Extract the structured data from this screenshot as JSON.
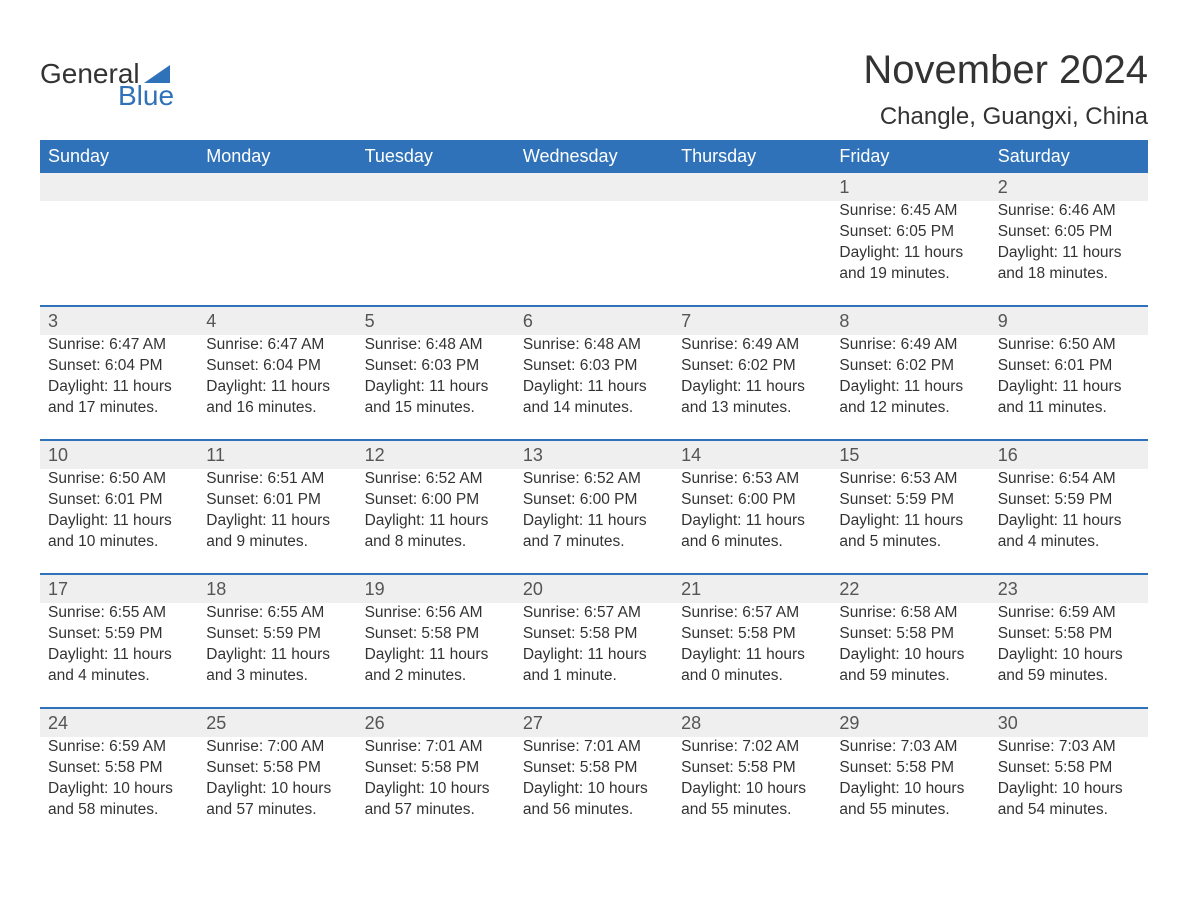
{
  "logo": {
    "word1": "General",
    "word2": "Blue"
  },
  "title": "November 2024",
  "location": "Changle, Guangxi, China",
  "header_bg": "#2f72b9",
  "header_text": "#ffffff",
  "accent_color": "#2f72b9",
  "daynum_bg": "#efefef",
  "text_color": "#333333",
  "font_family": "Arial, Helvetica, sans-serif",
  "weekdays": [
    "Sunday",
    "Monday",
    "Tuesday",
    "Wednesday",
    "Thursday",
    "Friday",
    "Saturday"
  ],
  "weeks": [
    {
      "sep": false,
      "cells": [
        null,
        null,
        null,
        null,
        null,
        {
          "n": "1",
          "sr": "Sunrise: 6:45 AM",
          "ss": "Sunset: 6:05 PM",
          "d1": "Daylight: 11 hours",
          "d2": "and 19 minutes."
        },
        {
          "n": "2",
          "sr": "Sunrise: 6:46 AM",
          "ss": "Sunset: 6:05 PM",
          "d1": "Daylight: 11 hours",
          "d2": "and 18 minutes."
        }
      ]
    },
    {
      "sep": true,
      "cells": [
        {
          "n": "3",
          "sr": "Sunrise: 6:47 AM",
          "ss": "Sunset: 6:04 PM",
          "d1": "Daylight: 11 hours",
          "d2": "and 17 minutes."
        },
        {
          "n": "4",
          "sr": "Sunrise: 6:47 AM",
          "ss": "Sunset: 6:04 PM",
          "d1": "Daylight: 11 hours",
          "d2": "and 16 minutes."
        },
        {
          "n": "5",
          "sr": "Sunrise: 6:48 AM",
          "ss": "Sunset: 6:03 PM",
          "d1": "Daylight: 11 hours",
          "d2": "and 15 minutes."
        },
        {
          "n": "6",
          "sr": "Sunrise: 6:48 AM",
          "ss": "Sunset: 6:03 PM",
          "d1": "Daylight: 11 hours",
          "d2": "and 14 minutes."
        },
        {
          "n": "7",
          "sr": "Sunrise: 6:49 AM",
          "ss": "Sunset: 6:02 PM",
          "d1": "Daylight: 11 hours",
          "d2": "and 13 minutes."
        },
        {
          "n": "8",
          "sr": "Sunrise: 6:49 AM",
          "ss": "Sunset: 6:02 PM",
          "d1": "Daylight: 11 hours",
          "d2": "and 12 minutes."
        },
        {
          "n": "9",
          "sr": "Sunrise: 6:50 AM",
          "ss": "Sunset: 6:01 PM",
          "d1": "Daylight: 11 hours",
          "d2": "and 11 minutes."
        }
      ]
    },
    {
      "sep": true,
      "cells": [
        {
          "n": "10",
          "sr": "Sunrise: 6:50 AM",
          "ss": "Sunset: 6:01 PM",
          "d1": "Daylight: 11 hours",
          "d2": "and 10 minutes."
        },
        {
          "n": "11",
          "sr": "Sunrise: 6:51 AM",
          "ss": "Sunset: 6:01 PM",
          "d1": "Daylight: 11 hours",
          "d2": "and 9 minutes."
        },
        {
          "n": "12",
          "sr": "Sunrise: 6:52 AM",
          "ss": "Sunset: 6:00 PM",
          "d1": "Daylight: 11 hours",
          "d2": "and 8 minutes."
        },
        {
          "n": "13",
          "sr": "Sunrise: 6:52 AM",
          "ss": "Sunset: 6:00 PM",
          "d1": "Daylight: 11 hours",
          "d2": "and 7 minutes."
        },
        {
          "n": "14",
          "sr": "Sunrise: 6:53 AM",
          "ss": "Sunset: 6:00 PM",
          "d1": "Daylight: 11 hours",
          "d2": "and 6 minutes."
        },
        {
          "n": "15",
          "sr": "Sunrise: 6:53 AM",
          "ss": "Sunset: 5:59 PM",
          "d1": "Daylight: 11 hours",
          "d2": "and 5 minutes."
        },
        {
          "n": "16",
          "sr": "Sunrise: 6:54 AM",
          "ss": "Sunset: 5:59 PM",
          "d1": "Daylight: 11 hours",
          "d2": "and 4 minutes."
        }
      ]
    },
    {
      "sep": true,
      "cells": [
        {
          "n": "17",
          "sr": "Sunrise: 6:55 AM",
          "ss": "Sunset: 5:59 PM",
          "d1": "Daylight: 11 hours",
          "d2": "and 4 minutes."
        },
        {
          "n": "18",
          "sr": "Sunrise: 6:55 AM",
          "ss": "Sunset: 5:59 PM",
          "d1": "Daylight: 11 hours",
          "d2": "and 3 minutes."
        },
        {
          "n": "19",
          "sr": "Sunrise: 6:56 AM",
          "ss": "Sunset: 5:58 PM",
          "d1": "Daylight: 11 hours",
          "d2": "and 2 minutes."
        },
        {
          "n": "20",
          "sr": "Sunrise: 6:57 AM",
          "ss": "Sunset: 5:58 PM",
          "d1": "Daylight: 11 hours",
          "d2": "and 1 minute."
        },
        {
          "n": "21",
          "sr": "Sunrise: 6:57 AM",
          "ss": "Sunset: 5:58 PM",
          "d1": "Daylight: 11 hours",
          "d2": "and 0 minutes."
        },
        {
          "n": "22",
          "sr": "Sunrise: 6:58 AM",
          "ss": "Sunset: 5:58 PM",
          "d1": "Daylight: 10 hours",
          "d2": "and 59 minutes."
        },
        {
          "n": "23",
          "sr": "Sunrise: 6:59 AM",
          "ss": "Sunset: 5:58 PM",
          "d1": "Daylight: 10 hours",
          "d2": "and 59 minutes."
        }
      ]
    },
    {
      "sep": true,
      "cells": [
        {
          "n": "24",
          "sr": "Sunrise: 6:59 AM",
          "ss": "Sunset: 5:58 PM",
          "d1": "Daylight: 10 hours",
          "d2": "and 58 minutes."
        },
        {
          "n": "25",
          "sr": "Sunrise: 7:00 AM",
          "ss": "Sunset: 5:58 PM",
          "d1": "Daylight: 10 hours",
          "d2": "and 57 minutes."
        },
        {
          "n": "26",
          "sr": "Sunrise: 7:01 AM",
          "ss": "Sunset: 5:58 PM",
          "d1": "Daylight: 10 hours",
          "d2": "and 57 minutes."
        },
        {
          "n": "27",
          "sr": "Sunrise: 7:01 AM",
          "ss": "Sunset: 5:58 PM",
          "d1": "Daylight: 10 hours",
          "d2": "and 56 minutes."
        },
        {
          "n": "28",
          "sr": "Sunrise: 7:02 AM",
          "ss": "Sunset: 5:58 PM",
          "d1": "Daylight: 10 hours",
          "d2": "and 55 minutes."
        },
        {
          "n": "29",
          "sr": "Sunrise: 7:03 AM",
          "ss": "Sunset: 5:58 PM",
          "d1": "Daylight: 10 hours",
          "d2": "and 55 minutes."
        },
        {
          "n": "30",
          "sr": "Sunrise: 7:03 AM",
          "ss": "Sunset: 5:58 PM",
          "d1": "Daylight: 10 hours",
          "d2": "and 54 minutes."
        }
      ]
    }
  ]
}
